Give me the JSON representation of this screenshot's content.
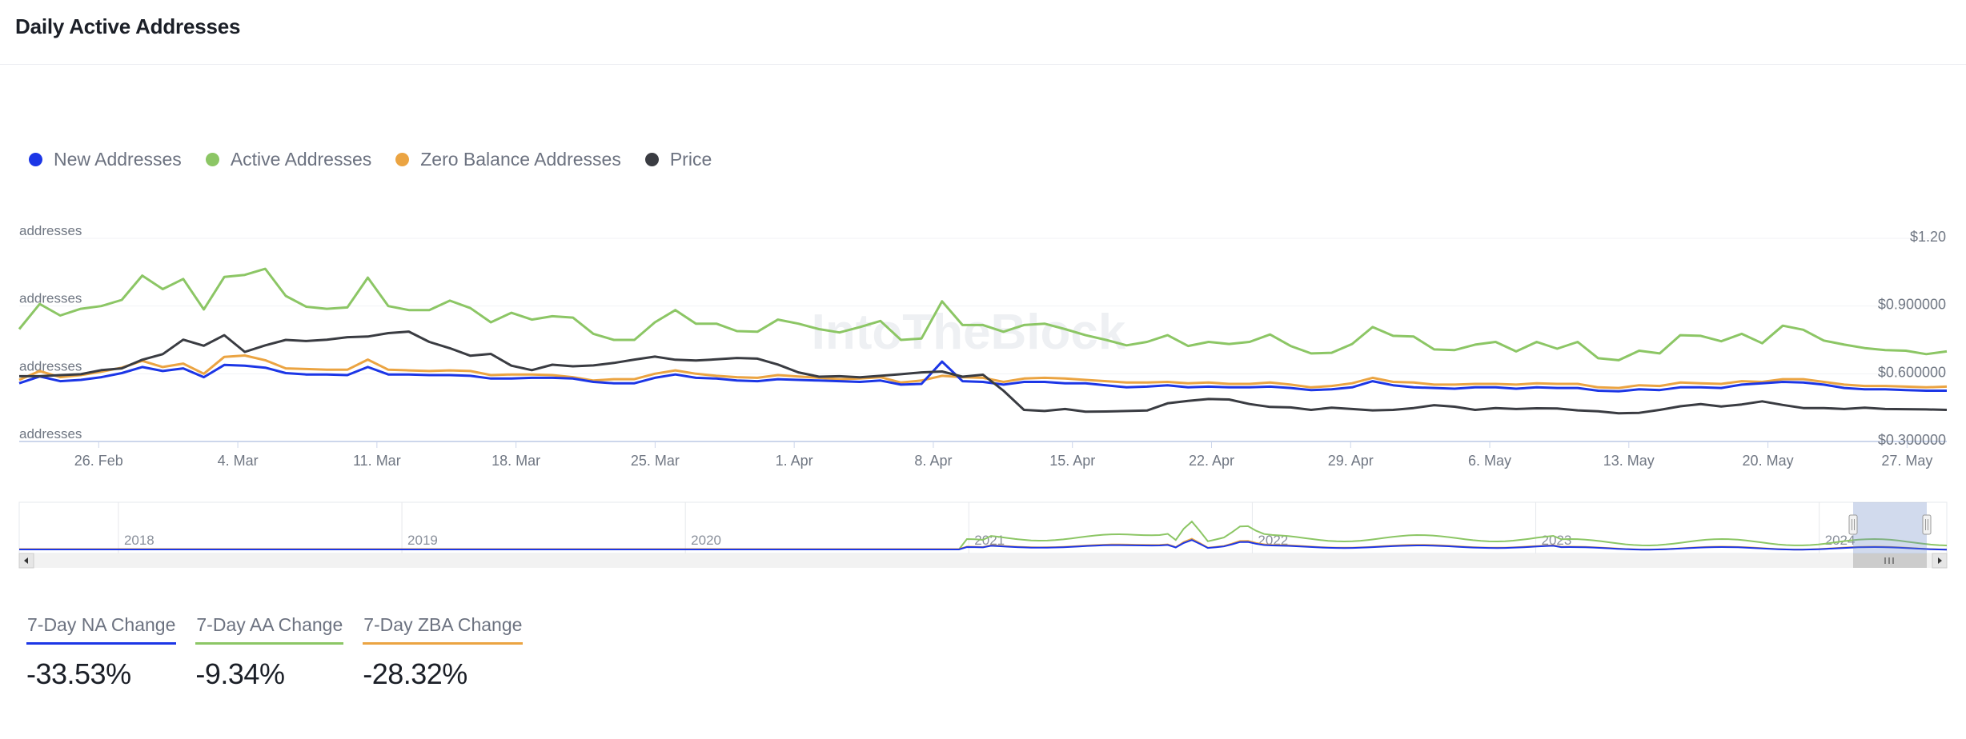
{
  "header": {
    "title": "Daily Active Addresses"
  },
  "legend": [
    {
      "name": "New Addresses",
      "color": "#1c36e6",
      "icon": "legend-dot-icon"
    },
    {
      "name": "Active Addresses",
      "color": "#8cc665",
      "icon": "legend-dot-icon"
    },
    {
      "name": "Zero Balance Addresses",
      "color": "#eba442",
      "icon": "legend-dot-icon"
    },
    {
      "name": "Price",
      "color": "#3a3c42",
      "icon": "legend-dot-icon"
    }
  ],
  "watermark": "IntoTheBlock",
  "chart_data": {
    "type": "line",
    "x_ticks": [
      "26. Feb",
      "4. Mar",
      "11. Mar",
      "18. Mar",
      "25. Mar",
      "1. Apr",
      "8. Apr",
      "15. Apr",
      "22. Apr",
      "29. Apr",
      "6. May",
      "13. May",
      "20. May",
      "27. May"
    ],
    "x_range": [
      "2024-02-22",
      "2024-05-29"
    ],
    "y_left": {
      "label": "addresses",
      "tick_labels": [
        "addresses",
        "addresses",
        "addresses",
        "addresses"
      ],
      "range": [
        0,
        3
      ]
    },
    "y_right": {
      "tick_labels": [
        "$1.20",
        "$0.900000",
        "$0.600000",
        "$0.300000"
      ],
      "ticks": [
        1.2,
        0.9,
        0.6,
        0.3
      ],
      "range": [
        0.3,
        1.2
      ]
    },
    "grid": true,
    "legend_position": "top-left",
    "series": [
      {
        "name": "Active Addresses",
        "axis": "left",
        "color": "#8cc665",
        "values": [
          1.66,
          2.03,
          1.86,
          1.96,
          2.0,
          2.09,
          2.45,
          2.25,
          2.4,
          1.95,
          2.43,
          2.46,
          2.55,
          2.15,
          1.99,
          1.96,
          1.98,
          2.42,
          2.0,
          1.94,
          1.94,
          2.08,
          1.97,
          1.76,
          1.9,
          1.8,
          1.85,
          1.83,
          1.59,
          1.5,
          1.5,
          1.76,
          1.94,
          1.74,
          1.74,
          1.63,
          1.62,
          1.8,
          1.74,
          1.66,
          1.61,
          1.69,
          1.78,
          1.5,
          1.52,
          2.07,
          1.72,
          1.72,
          1.62,
          1.72,
          1.74,
          1.66,
          1.57,
          1.5,
          1.42,
          1.47,
          1.57,
          1.41,
          1.47,
          1.44,
          1.47,
          1.58,
          1.41,
          1.3,
          1.31,
          1.44,
          1.69,
          1.56,
          1.55,
          1.36,
          1.35,
          1.43,
          1.47,
          1.33,
          1.47,
          1.37,
          1.47,
          1.23,
          1.2,
          1.34,
          1.3,
          1.57,
          1.56,
          1.48,
          1.59,
          1.45,
          1.71,
          1.65,
          1.49,
          1.43,
          1.38,
          1.35,
          1.34,
          1.29,
          1.33
        ]
      },
      {
        "name": "Zero Balance Addresses",
        "axis": "left",
        "color": "#eba442",
        "values": [
          0.91,
          1.04,
          0.95,
          0.98,
          1.03,
          1.09,
          1.19,
          1.1,
          1.15,
          1.0,
          1.25,
          1.27,
          1.2,
          1.08,
          1.07,
          1.06,
          1.06,
          1.21,
          1.06,
          1.05,
          1.04,
          1.05,
          1.04,
          0.98,
          0.99,
          0.99,
          0.98,
          0.95,
          0.9,
          0.92,
          0.92,
          1.0,
          1.05,
          1.0,
          0.97,
          0.95,
          0.94,
          0.98,
          0.96,
          0.94,
          0.92,
          0.93,
          0.95,
          0.87,
          0.9,
          0.97,
          0.95,
          0.94,
          0.88,
          0.93,
          0.94,
          0.93,
          0.91,
          0.89,
          0.87,
          0.87,
          0.88,
          0.86,
          0.87,
          0.85,
          0.85,
          0.87,
          0.84,
          0.8,
          0.82,
          0.86,
          0.94,
          0.88,
          0.87,
          0.84,
          0.84,
          0.85,
          0.85,
          0.84,
          0.86,
          0.85,
          0.85,
          0.8,
          0.79,
          0.83,
          0.82,
          0.87,
          0.86,
          0.85,
          0.89,
          0.88,
          0.92,
          0.92,
          0.88,
          0.84,
          0.82,
          0.82,
          0.81,
          0.8,
          0.81
        ]
      },
      {
        "name": "New Addresses",
        "axis": "left",
        "color": "#1c36e6",
        "values": [
          0.86,
          0.96,
          0.89,
          0.91,
          0.95,
          1.01,
          1.1,
          1.04,
          1.08,
          0.95,
          1.13,
          1.12,
          1.09,
          1.01,
          0.99,
          0.99,
          0.98,
          1.1,
          0.99,
          0.99,
          0.98,
          0.98,
          0.97,
          0.93,
          0.93,
          0.94,
          0.94,
          0.93,
          0.88,
          0.86,
          0.86,
          0.94,
          0.99,
          0.94,
          0.93,
          0.9,
          0.89,
          0.92,
          0.91,
          0.9,
          0.89,
          0.88,
          0.9,
          0.84,
          0.85,
          1.18,
          0.89,
          0.88,
          0.84,
          0.88,
          0.88,
          0.86,
          0.86,
          0.83,
          0.8,
          0.81,
          0.83,
          0.8,
          0.81,
          0.8,
          0.8,
          0.81,
          0.79,
          0.76,
          0.77,
          0.8,
          0.89,
          0.83,
          0.8,
          0.79,
          0.78,
          0.8,
          0.8,
          0.78,
          0.8,
          0.79,
          0.79,
          0.75,
          0.74,
          0.77,
          0.76,
          0.8,
          0.8,
          0.79,
          0.84,
          0.86,
          0.88,
          0.87,
          0.84,
          0.79,
          0.77,
          0.77,
          0.76,
          0.75,
          0.75
        ]
      },
      {
        "name": "Price",
        "axis": "right",
        "color": "#3a3c42",
        "values": [
          0.589,
          0.589,
          0.594,
          0.598,
          0.616,
          0.624,
          0.662,
          0.687,
          0.751,
          0.724,
          0.771,
          0.697,
          0.726,
          0.75,
          0.745,
          0.751,
          0.762,
          0.765,
          0.78,
          0.787,
          0.741,
          0.713,
          0.68,
          0.688,
          0.636,
          0.616,
          0.64,
          0.633,
          0.637,
          0.648,
          0.663,
          0.676,
          0.662,
          0.659,
          0.664,
          0.67,
          0.667,
          0.641,
          0.606,
          0.587,
          0.589,
          0.584,
          0.591,
          0.598,
          0.606,
          0.61,
          0.587,
          0.596,
          0.525,
          0.44,
          0.435,
          0.444,
          0.432,
          0.433,
          0.435,
          0.437,
          0.469,
          0.48,
          0.488,
          0.486,
          0.466,
          0.453,
          0.451,
          0.44,
          0.45,
          0.444,
          0.438,
          0.44,
          0.448,
          0.461,
          0.454,
          0.44,
          0.448,
          0.444,
          0.447,
          0.446,
          0.438,
          0.434,
          0.425,
          0.427,
          0.44,
          0.456,
          0.466,
          0.455,
          0.464,
          0.478,
          0.462,
          0.448,
          0.448,
          0.444,
          0.45,
          0.444,
          0.443,
          0.442,
          0.44
        ]
      }
    ],
    "navigator": {
      "x_ticks": [
        "2018",
        "2019",
        "2020",
        "2021",
        "2022",
        "2023",
        "2024"
      ],
      "selection_range": [
        "2024-02-22",
        "2024-05-29"
      ]
    }
  },
  "stats": [
    {
      "label": "7-Day NA Change",
      "value": "-33.53%",
      "color": "#1c36e6"
    },
    {
      "label": "7-Day AA Change",
      "value": "-9.34%",
      "color": "#8cc665"
    },
    {
      "label": "7-Day ZBA Change",
      "value": "-28.32%",
      "color": "#eba442"
    }
  ]
}
